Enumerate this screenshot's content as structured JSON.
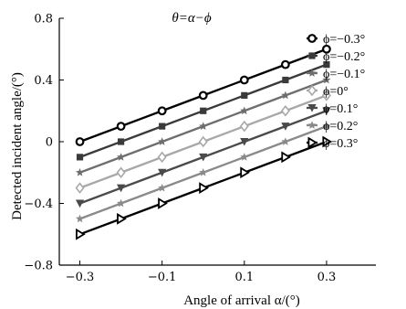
{
  "chart_data": {
    "type": "line",
    "title": "",
    "annotation": "θ=α−ϕ",
    "xlabel": "Angle of arrival α/(°)",
    "ylabel": "Detected incident angle/(°)",
    "xlim": [
      -0.35,
      0.42
    ],
    "ylim": [
      -0.8,
      0.8
    ],
    "xticks": [
      -0.3,
      -0.1,
      0.1,
      0.3
    ],
    "xtick_labels": [
      "−0.3",
      "−0.1",
      "0.1",
      "0.3"
    ],
    "yticks": [
      -0.8,
      -0.4,
      0,
      0.4,
      0.8
    ],
    "ytick_labels": [
      "−0.8",
      "−0.4",
      "0",
      "0.4",
      "0.8"
    ],
    "grid": false,
    "legend_position": "right",
    "x": [
      -0.3,
      -0.2,
      -0.1,
      0.0,
      0.1,
      0.2,
      0.3
    ],
    "series": [
      {
        "name": "ϕ=−0.3°",
        "values": [
          0.0,
          0.1,
          0.2,
          0.3,
          0.4,
          0.5,
          0.6
        ],
        "color": "#000000",
        "marker": "circle"
      },
      {
        "name": "ϕ=−0.2°",
        "values": [
          -0.1,
          0.0,
          0.1,
          0.2,
          0.3,
          0.4,
          0.5
        ],
        "color": "#3a3a3a",
        "marker": "square"
      },
      {
        "name": "ϕ=−0.1°",
        "values": [
          -0.2,
          -0.1,
          0.0,
          0.1,
          0.2,
          0.3,
          0.4
        ],
        "color": "#6e6e6e",
        "marker": "star"
      },
      {
        "name": "ϕ=0°",
        "values": [
          -0.3,
          -0.2,
          -0.1,
          0.0,
          0.1,
          0.2,
          0.3
        ],
        "color": "#a8a8a8",
        "marker": "diamond"
      },
      {
        "name": "ϕ=0.1°",
        "values": [
          -0.4,
          -0.3,
          -0.2,
          -0.1,
          0.0,
          0.1,
          0.2
        ],
        "color": "#4a4a4a",
        "marker": "triangle-down"
      },
      {
        "name": "ϕ=0.2°",
        "values": [
          -0.5,
          -0.4,
          -0.3,
          -0.2,
          -0.1,
          0.0,
          0.1
        ],
        "color": "#8a8a8a",
        "marker": "star"
      },
      {
        "name": "ϕ=0.3°",
        "values": [
          -0.6,
          -0.5,
          -0.4,
          -0.3,
          -0.2,
          -0.1,
          0.0
        ],
        "color": "#000000",
        "marker": "triangle-right"
      }
    ]
  }
}
